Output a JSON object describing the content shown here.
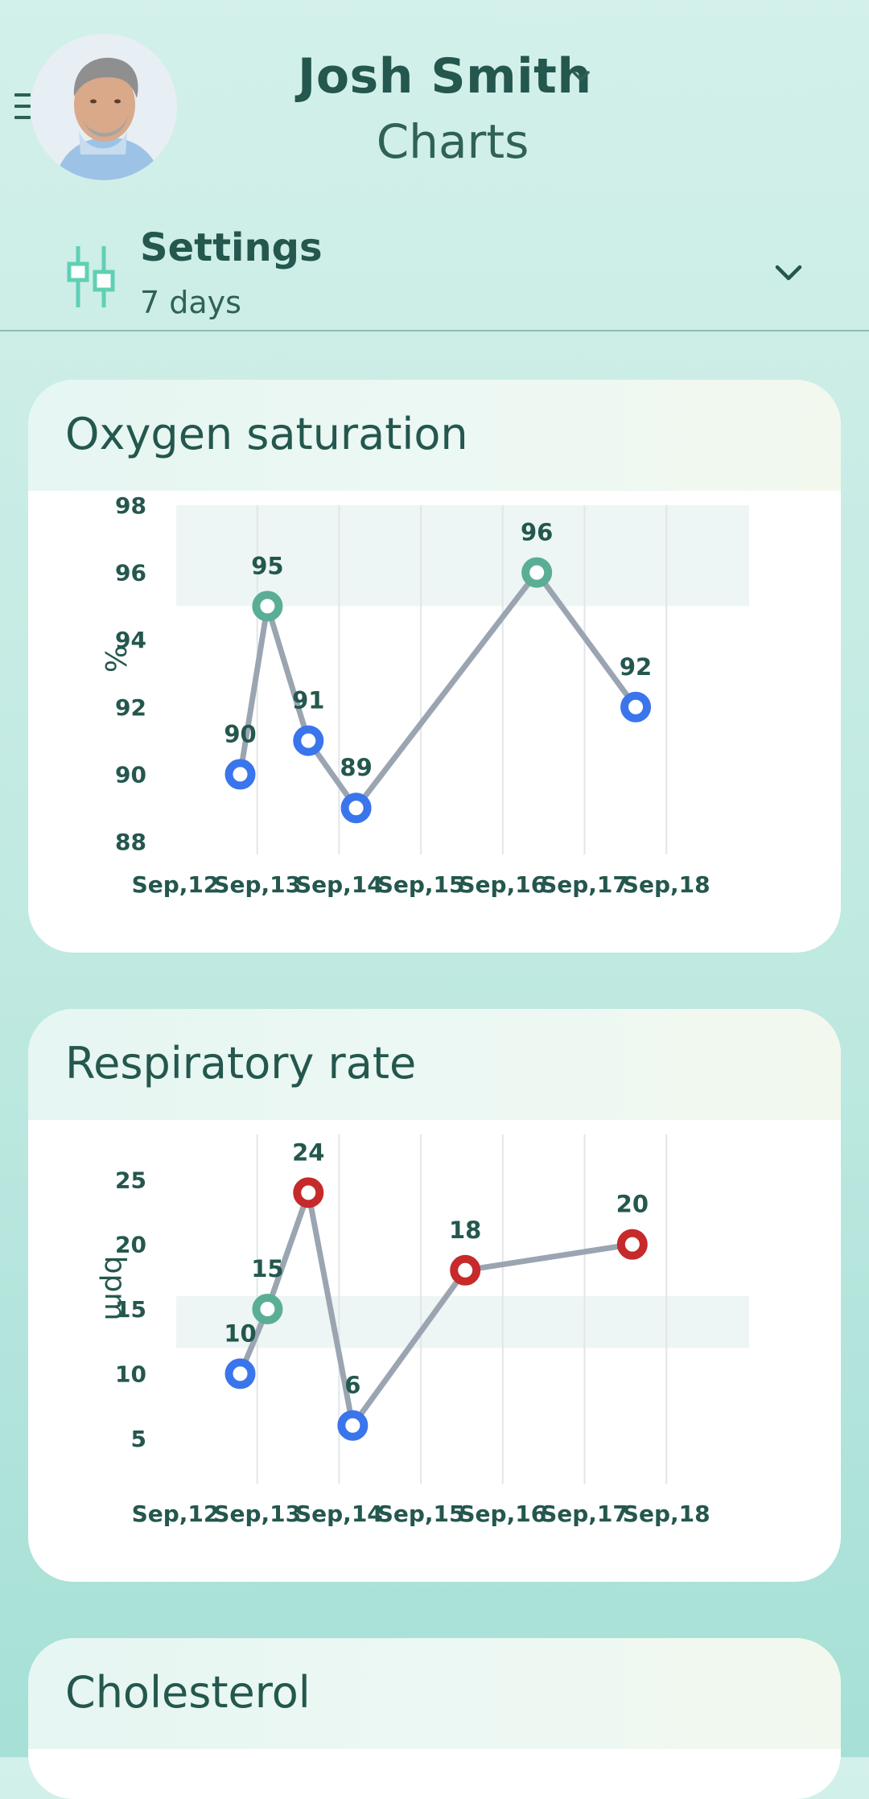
{
  "header": {
    "patient_name": "Josh Smith",
    "page_title": "Charts"
  },
  "settings": {
    "title": "Settings",
    "period": "7 days"
  },
  "colors": {
    "accent": "#24574e",
    "normal_point": "#5aae96",
    "low_point": "#3a75ec",
    "high_point": "#c62a2a",
    "line": "#9aa5b1",
    "normal_band": "#edf6f4"
  },
  "icons": [
    "menu-icon",
    "chevron-down-icon",
    "settings-sliders-icon"
  ],
  "cards": [
    {
      "title": "Oxygen saturation"
    },
    {
      "title": "Respiratory rate"
    },
    {
      "title": "Cholesterol"
    }
  ],
  "chart_data": [
    {
      "type": "line",
      "title": "Oxygen saturation",
      "ylabel": "%",
      "ylim": [
        88,
        98
      ],
      "yticks": [
        88,
        90,
        92,
        94,
        96,
        98
      ],
      "categories": [
        "Sep,12",
        "Sep,13",
        "Sep,14",
        "Sep,15",
        "Sep,16",
        "Sep,17",
        "Sep,18"
      ],
      "normal_range": [
        95,
        98
      ],
      "grid": "vertical",
      "points": [
        {
          "x": "2023-09-12T19:00",
          "y": 90,
          "label": "90",
          "status": "low"
        },
        {
          "x": "2023-09-13T03:00",
          "y": 95,
          "label": "95",
          "status": "normal"
        },
        {
          "x": "2023-09-13T15:00",
          "y": 91,
          "label": "91",
          "status": "low"
        },
        {
          "x": "2023-09-14T05:00",
          "y": 89,
          "label": "89",
          "status": "low"
        },
        {
          "x": "2023-09-16T10:00",
          "y": 96,
          "label": "96",
          "status": "normal"
        },
        {
          "x": "2023-09-17T15:00",
          "y": 92,
          "label": "92",
          "status": "low"
        }
      ]
    },
    {
      "type": "line",
      "title": "Respiratory rate",
      "ylabel": "bpm",
      "ylim": [
        2.5,
        28.5
      ],
      "yticks": [
        5,
        10,
        15,
        20,
        25
      ],
      "categories": [
        "Sep,12",
        "Sep,13",
        "Sep,14",
        "Sep,15",
        "Sep,16",
        "Sep,17",
        "Sep,18"
      ],
      "normal_range": [
        12,
        16
      ],
      "grid": "vertical",
      "points": [
        {
          "x": "2023-09-12T19:00",
          "y": 10,
          "label": "10",
          "status": "low"
        },
        {
          "x": "2023-09-13T03:00",
          "y": 15,
          "label": "15",
          "status": "normal"
        },
        {
          "x": "2023-09-13T15:00",
          "y": 24,
          "label": "24",
          "status": "high"
        },
        {
          "x": "2023-09-14T04:00",
          "y": 6,
          "label": "6",
          "status": "low"
        },
        {
          "x": "2023-09-15T13:00",
          "y": 18,
          "label": "18",
          "status": "high"
        },
        {
          "x": "2023-09-17T14:00",
          "y": 20,
          "label": "20",
          "status": "high"
        }
      ]
    }
  ]
}
